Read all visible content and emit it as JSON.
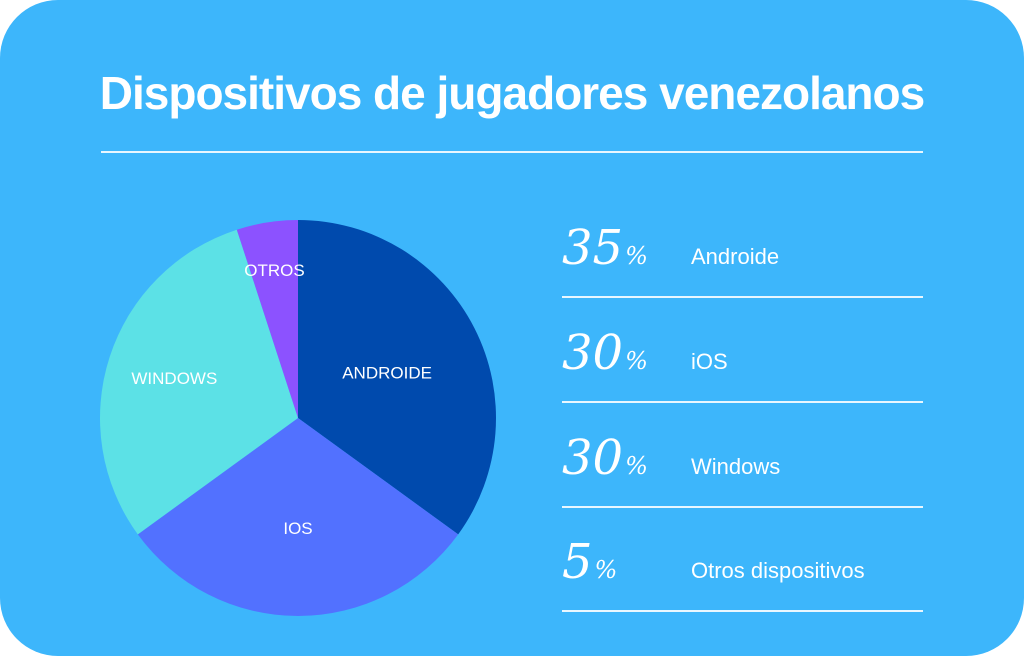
{
  "colors": {
    "background": "#3db6fb",
    "androide": "#004aad",
    "ios": "#5271ff",
    "windows": "#5ce1e6",
    "otros": "#8c52ff"
  },
  "chart_data": {
    "type": "pie",
    "title": "Dispositivos de jugadores venezolanos",
    "slices": [
      {
        "label": "ANDROIDE",
        "value": 35,
        "color": "#004aad"
      },
      {
        "label": "IOS",
        "value": 30,
        "color": "#5271ff"
      },
      {
        "label": "WINDOWS",
        "value": 30,
        "color": "#5ce1e6"
      },
      {
        "label": "OTROS",
        "value": 5,
        "color": "#8c52ff"
      }
    ]
  },
  "stats": [
    {
      "value": "35",
      "sign": "%",
      "label": "Androide"
    },
    {
      "value": "30",
      "sign": "%",
      "label": "iOS"
    },
    {
      "value": "30",
      "sign": "%",
      "label": "Windows"
    },
    {
      "value": "5",
      "sign": "%",
      "label": "Otros dispositivos"
    }
  ]
}
